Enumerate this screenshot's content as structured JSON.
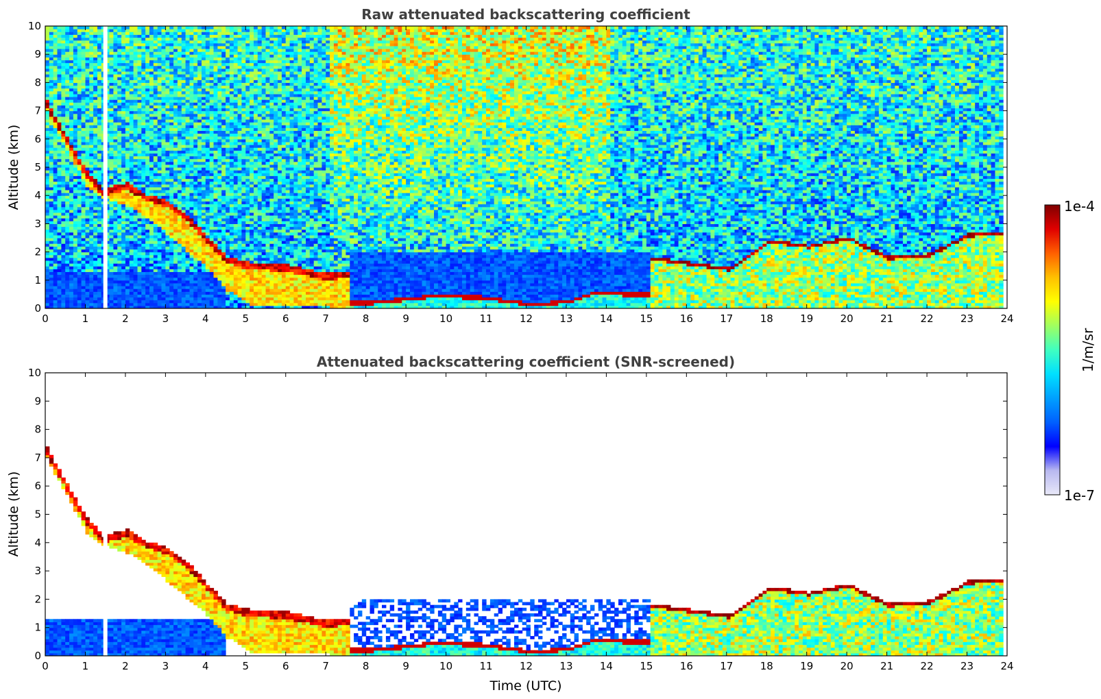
{
  "chart_data": [
    {
      "type": "heatmap",
      "title": "Raw attenuated backscattering coefficient",
      "xlabel": "",
      "ylabel": "Altitude (km)",
      "xlim": [
        0,
        24
      ],
      "ylim": [
        0,
        10
      ],
      "x_ticks": [
        "0",
        "1",
        "2",
        "3",
        "4",
        "5",
        "6",
        "7",
        "8",
        "9",
        "10",
        "11",
        "12",
        "13",
        "14",
        "15",
        "16",
        "17",
        "18",
        "19",
        "20",
        "21",
        "22",
        "23",
        "24"
      ],
      "y_ticks": [
        "0",
        "1",
        "2",
        "3",
        "4",
        "5",
        "6",
        "7",
        "8",
        "9",
        "10"
      ],
      "grid": false,
      "features": {
        "cloud_layer_top_km": [
          [
            0,
            7.3
          ],
          [
            0.5,
            6.0
          ],
          [
            1.0,
            4.8
          ],
          [
            1.4,
            4.2
          ],
          [
            2.0,
            4.4
          ],
          [
            2.5,
            4.0
          ],
          [
            3.0,
            3.8
          ],
          [
            3.5,
            3.3
          ],
          [
            4.0,
            2.5
          ],
          [
            4.5,
            1.8
          ],
          [
            5.0,
            1.6
          ],
          [
            6.0,
            1.5
          ],
          [
            7.0,
            1.2
          ],
          [
            7.5,
            1.3
          ]
        ],
        "cloud_layer_bottom_km": [
          [
            0,
            6.9
          ],
          [
            0.5,
            5.6
          ],
          [
            1.0,
            4.3
          ],
          [
            1.4,
            3.9
          ],
          [
            2.0,
            3.6
          ],
          [
            2.5,
            3.2
          ],
          [
            3.0,
            2.6
          ],
          [
            3.5,
            2.0
          ],
          [
            4.0,
            1.4
          ],
          [
            4.5,
            0.6
          ],
          [
            5.0,
            0.1
          ],
          [
            7.0,
            0.1
          ]
        ],
        "pbl_top_km": [
          [
            15.0,
            1.8
          ],
          [
            16.0,
            1.6
          ],
          [
            17.0,
            1.4
          ],
          [
            18.0,
            2.4
          ],
          [
            19.0,
            2.2
          ],
          [
            20.0,
            2.5
          ],
          [
            21.0,
            1.8
          ],
          [
            22.0,
            1.9
          ],
          [
            23.0,
            2.6
          ],
          [
            23.8,
            2.7
          ]
        ],
        "low_cloud_km": [
          [
            7.0,
            0.2
          ],
          [
            8.0,
            0.2
          ],
          [
            9.7,
            0.45
          ],
          [
            10.8,
            0.4
          ],
          [
            12.1,
            0.15
          ],
          [
            13.0,
            0.25
          ],
          [
            13.6,
            0.55
          ],
          [
            14.9,
            0.5
          ]
        ],
        "data_gap_hours": [
          1.5
        ]
      }
    },
    {
      "type": "heatmap",
      "title": "Attenuated backscattering coefficient (SNR-screened)",
      "xlabel": "Time (UTC)",
      "ylabel": "Altitude (km)",
      "xlim": [
        0,
        24
      ],
      "ylim": [
        0,
        10
      ],
      "x_ticks": [
        "0",
        "1",
        "2",
        "3",
        "4",
        "5",
        "6",
        "7",
        "8",
        "9",
        "10",
        "11",
        "12",
        "13",
        "14",
        "15",
        "16",
        "17",
        "18",
        "19",
        "20",
        "21",
        "22",
        "23",
        "24"
      ],
      "y_ticks": [
        "0",
        "1",
        "2",
        "3",
        "4",
        "5",
        "6",
        "7",
        "8",
        "9",
        "10"
      ],
      "grid": false,
      "features": {
        "screened_above_noise": true,
        "data_gap_hours": [
          1.5
        ]
      }
    }
  ],
  "colorbar": {
    "label": "1/m/sr",
    "max_label": "1e-4",
    "min_label": "1e-7",
    "scale": "log",
    "colormap": "jet",
    "colors": [
      "#e8e8f8",
      "#b8b8f0",
      "#0000ff",
      "#0060ff",
      "#00a0ff",
      "#00e0ff",
      "#40ffc0",
      "#a0ff60",
      "#ffff00",
      "#ffc000",
      "#ff6000",
      "#e00000",
      "#800000"
    ]
  }
}
